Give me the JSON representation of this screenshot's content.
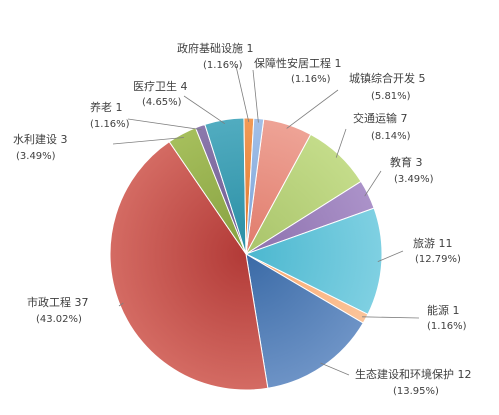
{
  "chart_data": {
    "type": "pie",
    "title": "",
    "unit_note": "",
    "slices": [
      {
        "category": "城镇综合开发",
        "value": 5,
        "percent": "5.81%",
        "color": "#e07b6b",
        "highlight": "#eea396"
      },
      {
        "category": "交通运输",
        "value": 7,
        "percent": "8.14%",
        "color": "#a9c46a",
        "highlight": "#c4dc8a"
      },
      {
        "category": "教育",
        "value": 3,
        "percent": "3.49%",
        "color": "#8c70ad",
        "highlight": "#ab92c9"
      },
      {
        "category": "旅游",
        "value": 11,
        "percent": "12.79%",
        "color": "#4bb7cf",
        "highlight": "#7fd0e2"
      },
      {
        "category": "能源",
        "value": 1,
        "percent": "1.16%",
        "color": "#f8a86e",
        "highlight": "#fbc49a"
      },
      {
        "category": "生态建设和环境保护",
        "value": 12,
        "percent": "13.95%",
        "color": "#3a6aa6",
        "highlight": "#6d93c6"
      },
      {
        "category": "市政工程",
        "value": 37,
        "percent": "43.02%",
        "color": "#b23a37",
        "highlight": "#d46b63"
      },
      {
        "category": "水利建设",
        "value": 3,
        "percent": "3.49%",
        "color": "#86a040",
        "highlight": "#a6bf5c"
      },
      {
        "category": "养老",
        "value": 1,
        "percent": "1.16%",
        "color": "#6e5a90",
        "highlight": "#8c79ad"
      },
      {
        "category": "医疗卫生",
        "value": 4,
        "percent": "4.65%",
        "color": "#2a8ea4",
        "highlight": "#51acc0"
      },
      {
        "category": "政府基础设施",
        "value": 1,
        "percent": "1.16%",
        "color": "#e0762c",
        "highlight": "#f19a57"
      },
      {
        "category": "保障性安居工程",
        "value": 1,
        "percent": "1.16%",
        "color": "#7aa2d8",
        "highlight": "#a3c0e8"
      }
    ]
  }
}
